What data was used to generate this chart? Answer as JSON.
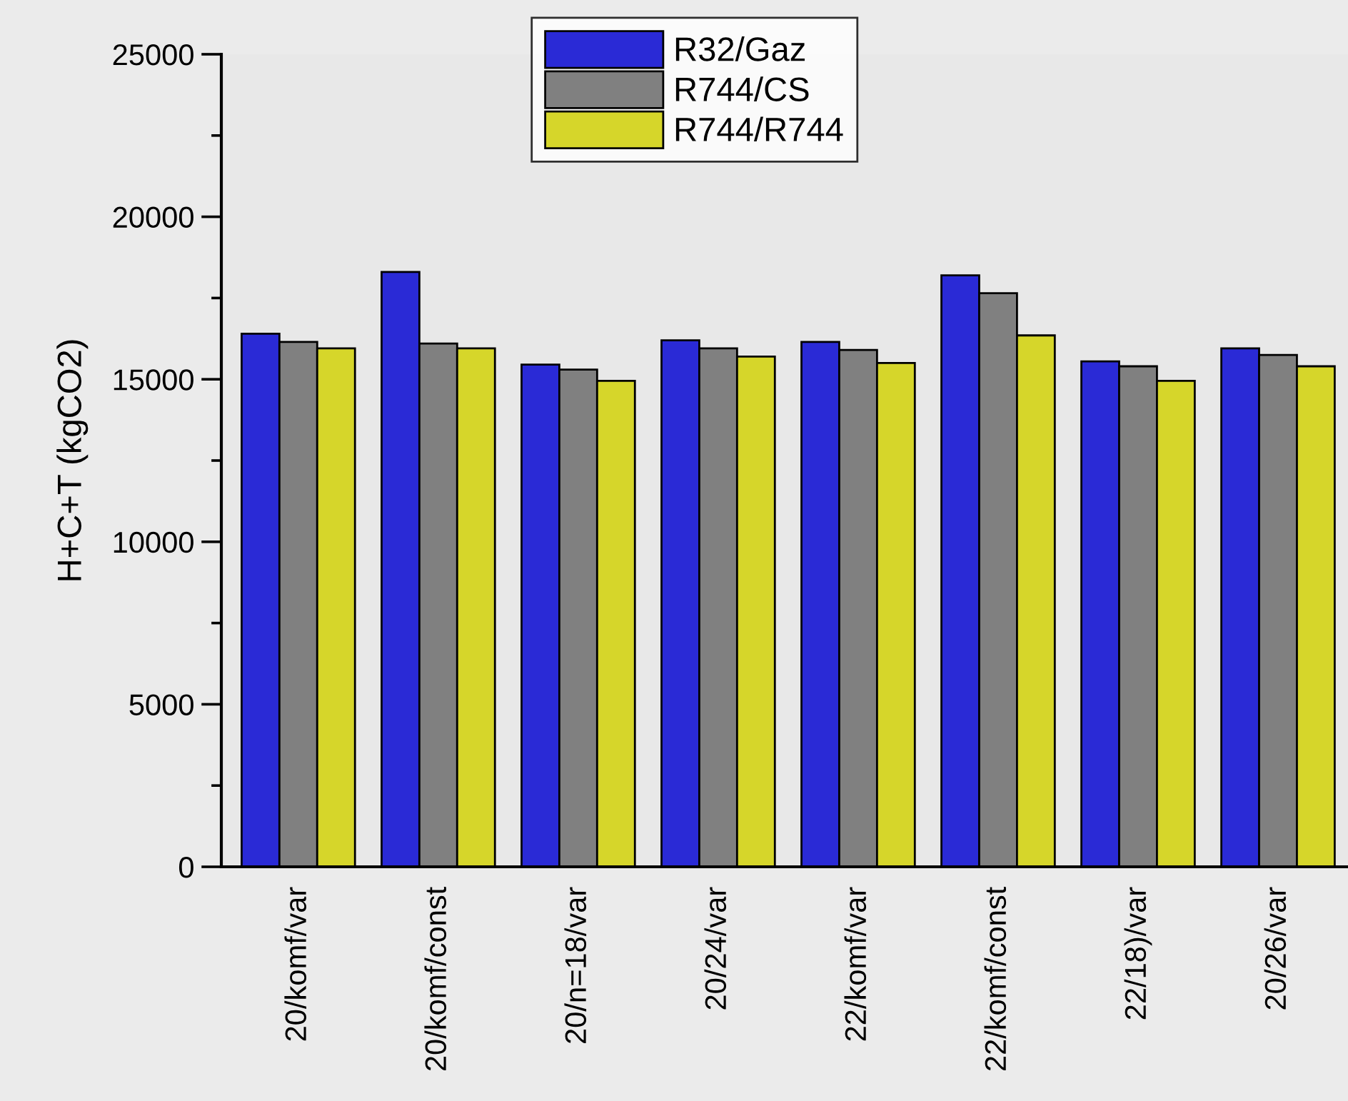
{
  "chart_data": {
    "type": "bar",
    "ylabel": "H+C+T (kgCO2)",
    "categories": [
      "20/komf/var",
      "20/komf/const",
      "20/n=18/var",
      "20/24/var",
      "22/komf/var",
      "22/komf/const",
      "22/18)/var",
      "20/26/var"
    ],
    "series": [
      {
        "name": "R32/Gaz",
        "color": "#2a2ad6",
        "values": [
          16400,
          18300,
          15450,
          16200,
          16150,
          18200,
          15550,
          15950
        ]
      },
      {
        "name": "R744/CS",
        "color": "#808080",
        "values": [
          16150,
          16100,
          15300,
          15950,
          15900,
          17650,
          15400,
          15750
        ]
      },
      {
        "name": "R744/R744",
        "color": "#d6d62a",
        "values": [
          15950,
          15950,
          14950,
          15700,
          15500,
          16350,
          14950,
          15400
        ]
      }
    ],
    "ylim": [
      0,
      25000
    ],
    "yticks": [
      0,
      5000,
      10000,
      15000,
      20000,
      25000
    ],
    "grid": false,
    "legend": "top"
  }
}
